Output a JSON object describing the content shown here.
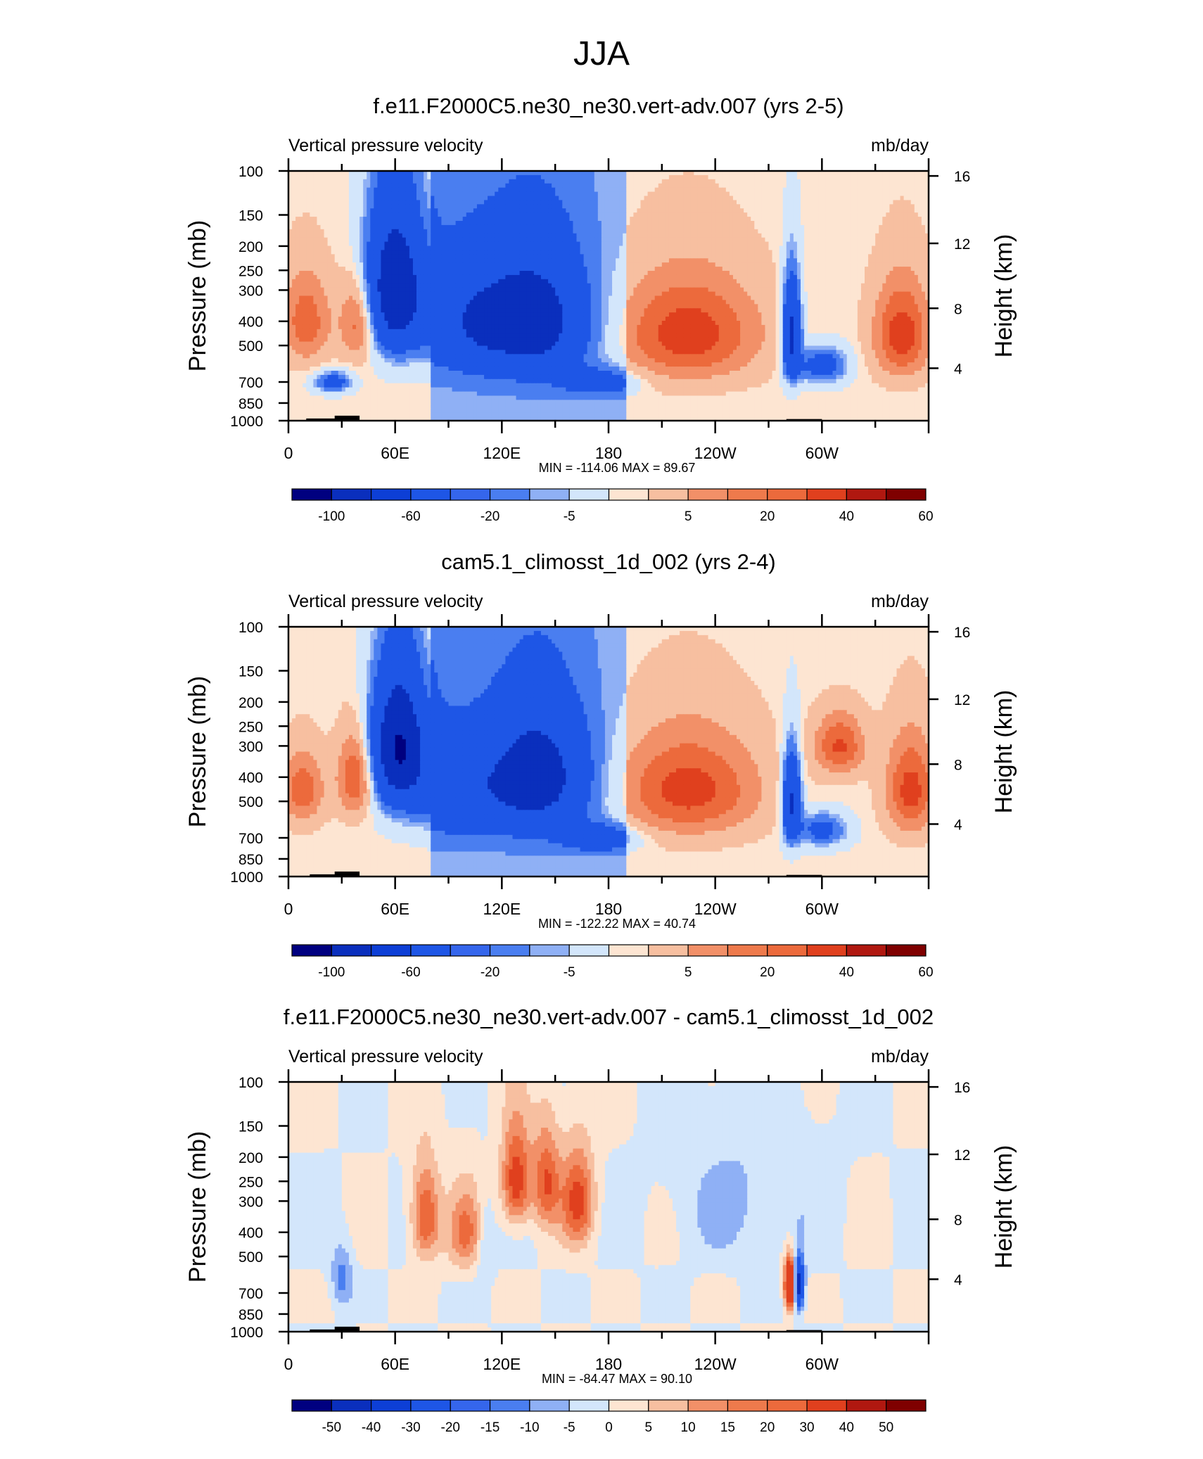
{
  "figure": {
    "title": "JJA"
  },
  "colors": {
    "neg5": "#000080",
    "neg4": "#0a2fbd",
    "neg3": "#1e56e6",
    "neg2": "#4a7ef0",
    "neg1": "#8fb0f5",
    "neg0": "#d3e6fb",
    "pos0": "#fde5d2",
    "pos1": "#f7bfa0",
    "pos2": "#f29068",
    "pos3": "#ec6a3c",
    "pos4": "#e0401e",
    "pos5": "#7f0000",
    "terrain": "#000000"
  },
  "chart_data": [
    {
      "type": "heatmap",
      "title": "f.e11.F2000C5.ne30_ne30.vert-adv.007 (yrs 2-5)",
      "left_label": "Vertical pressure velocity",
      "right_label": "mb/day",
      "ylabel": "Pressure (mb)",
      "y2label": "Height (km)",
      "x_ticks": [
        "0",
        "60E",
        "120E",
        "180",
        "120W",
        "60W"
      ],
      "y_ticks": [
        "100",
        "150",
        "200",
        "250",
        "300",
        "400",
        "500",
        "700",
        "850",
        "1000"
      ],
      "y2_ticks": [
        "16",
        "12",
        "8",
        "4"
      ],
      "stats": "MIN = -114.06  MAX =  89.67",
      "colorbar_labels": [
        "-100",
        "-60",
        "-20",
        "-5",
        "5",
        "20",
        "40",
        "60"
      ],
      "xlim": [
        0,
        360
      ],
      "ylim": [
        1000,
        100
      ],
      "features": [
        {
          "lon": 10,
          "plev": 400,
          "value": 30,
          "width": 14,
          "depth": 500
        },
        {
          "lon": 40,
          "plev": 400,
          "value": 35,
          "width": 10,
          "depth": 450
        },
        {
          "lon": 25,
          "plev": 700,
          "value": -40,
          "width": 10,
          "depth": 200
        },
        {
          "lon": 60,
          "plev": 300,
          "value": -100,
          "width": 16,
          "depth": 600
        },
        {
          "lon": 105,
          "plev": 400,
          "value": -50,
          "width": 28,
          "depth": 600
        },
        {
          "lon": 140,
          "plev": 400,
          "value": -70,
          "width": 26,
          "depth": 650
        },
        {
          "lon": 175,
          "plev": 700,
          "value": -30,
          "width": 20,
          "depth": 250
        },
        {
          "lon": 225,
          "plev": 450,
          "value": 40,
          "width": 40,
          "depth": 650
        },
        {
          "lon": 283,
          "plev": 450,
          "value": -80,
          "width": 5,
          "depth": 600
        },
        {
          "lon": 300,
          "plev": 600,
          "value": -40,
          "width": 14,
          "depth": 300
        },
        {
          "lon": 345,
          "plev": 450,
          "value": 40,
          "width": 16,
          "depth": 600
        }
      ],
      "terrain": [
        {
          "lon0": 10,
          "lon1": 28,
          "plev": 980
        },
        {
          "lon0": 26,
          "lon1": 40,
          "plev": 955
        },
        {
          "lon0": 280,
          "lon1": 300,
          "plev": 985
        }
      ]
    },
    {
      "type": "heatmap",
      "title": "cam5.1_climosst_1d_002 (yrs 2-4)",
      "left_label": "Vertical pressure velocity",
      "right_label": "mb/day",
      "ylabel": "Pressure (mb)",
      "y2label": "Height (km)",
      "x_ticks": [
        "0",
        "60E",
        "120E",
        "180",
        "120W",
        "60W"
      ],
      "y_ticks": [
        "100",
        "150",
        "200",
        "250",
        "300",
        "400",
        "500",
        "700",
        "850",
        "1000"
      ],
      "y2_ticks": [
        "16",
        "12",
        "8",
        "4"
      ],
      "stats": "MIN = -122.22  MAX =  40.74",
      "colorbar_labels": [
        "-100",
        "-60",
        "-20",
        "-5",
        "5",
        "20",
        "40",
        "60"
      ],
      "xlim": [
        0,
        360
      ],
      "ylim": [
        1000,
        100
      ],
      "features": [
        {
          "lon": 8,
          "plev": 450,
          "value": 30,
          "width": 12,
          "depth": 450
        },
        {
          "lon": 38,
          "plev": 400,
          "value": 38,
          "width": 10,
          "depth": 450
        },
        {
          "lon": 62,
          "plev": 300,
          "value": -105,
          "width": 15,
          "depth": 550
        },
        {
          "lon": 95,
          "plev": 450,
          "value": -40,
          "width": 30,
          "depth": 600
        },
        {
          "lon": 140,
          "plev": 400,
          "value": -75,
          "width": 26,
          "depth": 650
        },
        {
          "lon": 175,
          "plev": 700,
          "value": -35,
          "width": 20,
          "depth": 250
        },
        {
          "lon": 225,
          "plev": 450,
          "value": 38,
          "width": 40,
          "depth": 650
        },
        {
          "lon": 283,
          "plev": 500,
          "value": -75,
          "width": 5,
          "depth": 600
        },
        {
          "lon": 300,
          "plev": 650,
          "value": -35,
          "width": 14,
          "depth": 300
        },
        {
          "lon": 310,
          "plev": 300,
          "value": 35,
          "width": 14,
          "depth": 250
        },
        {
          "lon": 350,
          "plev": 450,
          "value": 38,
          "width": 14,
          "depth": 600
        }
      ],
      "terrain": [
        {
          "lon0": 12,
          "lon1": 28,
          "plev": 980
        },
        {
          "lon0": 26,
          "lon1": 40,
          "plev": 955
        },
        {
          "lon0": 280,
          "lon1": 300,
          "plev": 985
        }
      ]
    },
    {
      "type": "heatmap",
      "title": "f.e11.F2000C5.ne30_ne30.vert-adv.007 - cam5.1_climosst_1d_002",
      "left_label": "Vertical pressure velocity",
      "right_label": "mb/day",
      "ylabel": "Pressure (mb)",
      "y2label": "Height (km)",
      "x_ticks": [
        "0",
        "60E",
        "120E",
        "180",
        "120W",
        "60W"
      ],
      "y_ticks": [
        "100",
        "150",
        "200",
        "250",
        "300",
        "400",
        "500",
        "700",
        "850",
        "1000"
      ],
      "y2_ticks": [
        "16",
        "12",
        "8",
        "4"
      ],
      "stats": "MIN = -84.47  MAX =  90.10",
      "colorbar_labels": [
        "-50",
        "-40",
        "-30",
        "-20",
        "-15",
        "-10",
        "-5",
        "0",
        "5",
        "10",
        "15",
        "20",
        "30",
        "40",
        "50"
      ],
      "xlim": [
        0,
        360
      ],
      "ylim": [
        1000,
        100
      ],
      "features": [
        {
          "lon": 30,
          "plev": 600,
          "value": -12,
          "width": 6,
          "depth": 500
        },
        {
          "lon": 77,
          "plev": 350,
          "value": 22,
          "width": 8,
          "depth": 450
        },
        {
          "lon": 100,
          "plev": 400,
          "value": 15,
          "width": 10,
          "depth": 450
        },
        {
          "lon": 128,
          "plev": 250,
          "value": 25,
          "width": 8,
          "depth": 350
        },
        {
          "lon": 145,
          "plev": 250,
          "value": 20,
          "width": 8,
          "depth": 350
        },
        {
          "lon": 163,
          "plev": 300,
          "value": 22,
          "width": 9,
          "depth": 400
        },
        {
          "lon": 110,
          "plev": 450,
          "value": -8,
          "width": 5,
          "depth": 500
        },
        {
          "lon": 282,
          "plev": 650,
          "value": 45,
          "width": 3,
          "depth": 450
        },
        {
          "lon": 287,
          "plev": 650,
          "value": -40,
          "width": 3,
          "depth": 450
        },
        {
          "lon": 255,
          "plev": 300,
          "value": -6,
          "width": 40,
          "depth": 600
        }
      ],
      "terrain": [
        {
          "lon0": 12,
          "lon1": 28,
          "plev": 980
        },
        {
          "lon0": 26,
          "lon1": 40,
          "plev": 955
        },
        {
          "lon0": 280,
          "lon1": 300,
          "plev": 985
        }
      ]
    }
  ]
}
